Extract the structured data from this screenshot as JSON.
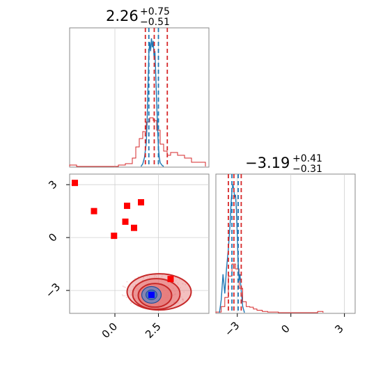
{
  "chart_data": [
    {
      "type": "histogram",
      "panel": "top-left-marginal",
      "title": {
        "value": "2.26",
        "plus": "+0.75",
        "minus": "−0.51"
      },
      "xlim": [
        -2.6,
        5.4
      ],
      "grid": true,
      "series": [
        {
          "name": "",
          "color": "#d62728",
          "style": "step",
          "bins": [
            -2.6,
            -2.2,
            -1.8,
            -1.4,
            -1.0,
            -0.6,
            -0.2,
            0.2,
            0.6,
            1.0,
            1.2,
            1.4,
            1.6,
            1.8,
            2.0,
            2.2,
            2.4,
            2.6,
            2.8,
            3.0,
            3.2,
            3.6,
            4.0,
            4.4,
            4.8,
            5.2
          ],
          "heights": [
            0.01,
            0.0,
            0.0,
            0.0,
            0.0,
            0.0,
            0.0,
            0.01,
            0.02,
            0.06,
            0.14,
            0.2,
            0.25,
            0.32,
            0.35,
            0.33,
            0.26,
            0.16,
            0.11,
            0.08,
            0.1,
            0.08,
            0.06,
            0.03,
            0.03
          ]
        },
        {
          "name": "",
          "color": "#1f77b4",
          "style": "line",
          "x": [
            1.5,
            1.6,
            1.7,
            1.8,
            1.85,
            1.9,
            1.95,
            2.0,
            2.05,
            2.1,
            2.15,
            2.2,
            2.25,
            2.3,
            2.35,
            2.4,
            2.45,
            2.5,
            2.55,
            2.6,
            2.7,
            2.8
          ],
          "y": [
            0.0,
            0.02,
            0.07,
            0.18,
            0.35,
            0.62,
            0.88,
            0.97,
            0.9,
            1.0,
            0.93,
            0.98,
            0.85,
            0.9,
            0.7,
            0.5,
            0.3,
            0.15,
            0.07,
            0.03,
            0.01,
            0.0
          ]
        }
      ],
      "vlines": [
        {
          "x": 1.75,
          "color": "#d62728"
        },
        {
          "x": 2.26,
          "color": "#d62728"
        },
        {
          "x": 3.01,
          "color": "#d62728"
        },
        {
          "x": 1.95,
          "color": "#1f77b4"
        },
        {
          "x": 2.5,
          "color": "#1f77b4"
        }
      ]
    },
    {
      "type": "contour-scatter",
      "panel": "bottom-left-joint",
      "xlim": [
        -2.6,
        5.4
      ],
      "ylim": [
        -4.3,
        3.6
      ],
      "xticks": [
        "0.0",
        "2.5"
      ],
      "xtick_values": [
        0.0,
        2.5
      ],
      "yticks": [
        "3",
        "0",
        "−3"
      ],
      "ytick_values": [
        3,
        0,
        -3
      ],
      "grid": true,
      "red_contour_center": [
        2.3,
        -3.2
      ],
      "blue_contour_center": [
        2.1,
        -3.25
      ],
      "points": [
        {
          "x": -2.3,
          "y": 3.1,
          "color": "#ff0000"
        },
        {
          "x": -1.2,
          "y": 1.5,
          "color": "#ff0000"
        },
        {
          "x": 0.7,
          "y": 1.8,
          "color": "#ff0000"
        },
        {
          "x": 1.5,
          "y": 2.0,
          "color": "#ff0000"
        },
        {
          "x": 0.6,
          "y": 0.9,
          "color": "#ff0000"
        },
        {
          "x": 1.1,
          "y": 0.55,
          "color": "#ff0000"
        },
        {
          "x": -0.05,
          "y": 0.1,
          "color": "#ff0000"
        },
        {
          "x": 3.2,
          "y": -2.35,
          "color": "#ff0000"
        },
        {
          "x": 2.1,
          "y": -3.25,
          "color": "#0000ff"
        }
      ]
    },
    {
      "type": "histogram",
      "panel": "bottom-right-marginal",
      "title": {
        "value": "−3.19",
        "plus": "+0.41",
        "minus": "−0.31"
      },
      "xlim": [
        -4.2,
        3.6
      ],
      "xticks": [
        "−3",
        "0",
        "3"
      ],
      "xtick_values": [
        -3,
        0,
        3
      ],
      "grid": true,
      "series": [
        {
          "name": "",
          "color": "#d62728",
          "style": "step",
          "bins": [
            -4.2,
            -3.9,
            -3.7,
            -3.5,
            -3.3,
            -3.1,
            -2.9,
            -2.7,
            -2.5,
            -2.3,
            -2.1,
            -1.9,
            -1.6,
            -1.3,
            -1.0,
            -0.7,
            1.5,
            1.8
          ],
          "heights": [
            0.01,
            0.1,
            0.25,
            0.6,
            0.8,
            0.72,
            0.4,
            0.18,
            0.1,
            0.09,
            0.06,
            0.04,
            0.02,
            0.01,
            0.01,
            0.0,
            0.02
          ]
        },
        {
          "name": "",
          "color": "#1f77b4",
          "style": "line",
          "x": [
            -4.0,
            -3.9,
            -3.8,
            -3.7,
            -3.6,
            -3.5,
            -3.4,
            -3.35,
            -3.3,
            -3.25,
            -3.2,
            -3.15,
            -3.1,
            -3.05,
            -3.0,
            -2.95,
            -2.9,
            -2.85,
            -2.8,
            -2.7,
            -2.6
          ],
          "y": [
            0.0,
            0.1,
            0.3,
            0.15,
            0.35,
            0.5,
            0.7,
            0.85,
            0.95,
            1.0,
            0.97,
            0.9,
            0.92,
            0.8,
            0.6,
            0.4,
            0.25,
            0.3,
            0.2,
            0.05,
            0.0
          ]
        }
      ],
      "vlines": [
        {
          "x": -3.5,
          "color": "#d62728"
        },
        {
          "x": -3.19,
          "color": "#d62728"
        },
        {
          "x": -2.78,
          "color": "#d62728"
        },
        {
          "x": -3.3,
          "color": "#1f77b4"
        },
        {
          "x": -2.95,
          "color": "#1f77b4"
        }
      ]
    }
  ]
}
